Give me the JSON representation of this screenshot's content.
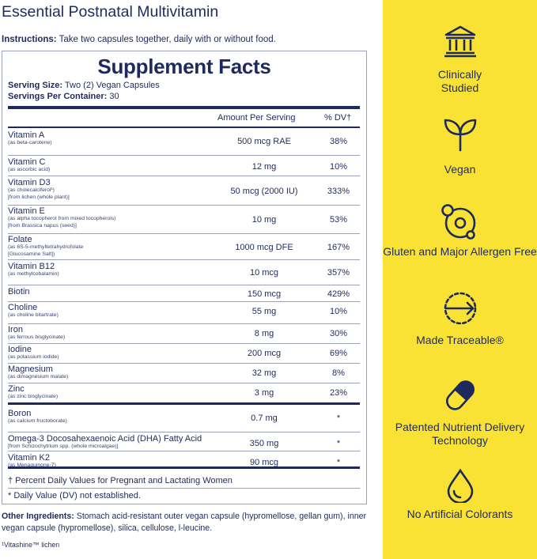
{
  "product": {
    "title": "Essential Postnatal Multivitamin",
    "instructions_label": "Instructions:",
    "instructions_text": " Take two capsules together, daily with or without food."
  },
  "facts": {
    "heading": "Supplement Facts",
    "serving_size_label": "Serving Size:",
    "serving_size_value": " Two (2) Vegan Capsules",
    "servings_label": "Servings Per Container:",
    "servings_value": " 30",
    "col_amount": "Amount Per Serving",
    "col_dv": "% DV†",
    "rows": [
      {
        "name": "Vitamin A",
        "sub": [
          "(as beta-carotene)"
        ],
        "amount": "500 mcg RAE",
        "dv": "38%"
      },
      {
        "name": "Vitamin C",
        "sub": [
          "(as ascorbic acid)"
        ],
        "amount": "12 mg",
        "dv": "10%"
      },
      {
        "name": "Vitamin D3",
        "sub": [
          "(as cholecalciferol¹)",
          "[from lichen (whole plant)]"
        ],
        "amount": "50 mcg (2000 IU)",
        "dv": "333%"
      },
      {
        "name": "Vitamin E",
        "sub": [
          "(as alpha tocopherol from mixed tocopherols)",
          "[from Brassica napus (seed)]"
        ],
        "amount": "10 mg",
        "dv": "53%"
      },
      {
        "name": "Folate",
        "sub": [
          "(as 6S-5-methyltetrahydrofolate",
          "[Glucosamine Salt])"
        ],
        "amount": "1000 mcg DFE",
        "dv": "167%"
      },
      {
        "name": "Vitamin B12",
        "sub": [
          "(as methylcobalamin)"
        ],
        "amount": "10 mcg",
        "dv": "357%"
      },
      {
        "name": "Biotin",
        "sub": [],
        "amount": "150 mcg",
        "dv": "429%"
      },
      {
        "name": "Choline",
        "sub": [
          "(as choline bitartrate)"
        ],
        "amount": "55 mg",
        "dv": "10%"
      },
      {
        "name": "Iron",
        "sub": [
          "(as ferrous bisglycinate)"
        ],
        "amount": "8 mg",
        "dv": "30%"
      },
      {
        "name": "Iodine",
        "sub": [
          "(as potassium iodide)"
        ],
        "amount": "200 mcg",
        "dv": "69%"
      },
      {
        "name": "Magnesium",
        "sub": [
          "(as dimagnesium malate)"
        ],
        "amount": "32 mg",
        "dv": "8%"
      },
      {
        "name": "Zinc",
        "sub": [
          "(as zinc bisglycinate)"
        ],
        "amount": "3 mg",
        "dv": "23%"
      },
      {
        "name": "Boron",
        "sub": [
          "(as calcium fructoborate)"
        ],
        "amount": "0.7 mg",
        "dv": "*"
      },
      {
        "name": "Omega-3 Docosahexaenoic Acid (DHA) Fatty Acid",
        "sub": [
          "[from Schizochytrium spp. (whole microalgae)]"
        ],
        "amount": "350 mg",
        "dv": "*"
      },
      {
        "name": "Vitamin K2",
        "sub": [
          "(as Menaquinone-7)"
        ],
        "amount": "90 mcg",
        "dv": "*"
      }
    ],
    "note_dagger": "† Percent Daily Values for Pregnant and Lactating Women",
    "note_star": "* Daily Value (DV) not established."
  },
  "other": {
    "label": "Other Ingredients:",
    "text": " Stomach acid-resistant outer vegan capsule (hypromellose, gellan gum), inner vegan capsule (hypromellose), silica, cellulose, l-leucine.",
    "footnote": "¹Vitashine™ lichen"
  },
  "features": [
    {
      "icon": "building-columns-icon",
      "label": "Clinically Studied"
    },
    {
      "icon": "sprout-icon",
      "label": "Vegan"
    },
    {
      "icon": "molecule-icon",
      "label": "Gluten and Major Allergen Free"
    },
    {
      "icon": "traceable-arrow-icon",
      "label": "Made Traceable®"
    },
    {
      "icon": "capsule-icon",
      "label": "Patented Nutrient Delivery Technology"
    },
    {
      "icon": "drop-icon",
      "label": "No Artificial Colorants"
    }
  ],
  "colors": {
    "navy": "#1f2a5c",
    "yellow": "#f9e234"
  }
}
